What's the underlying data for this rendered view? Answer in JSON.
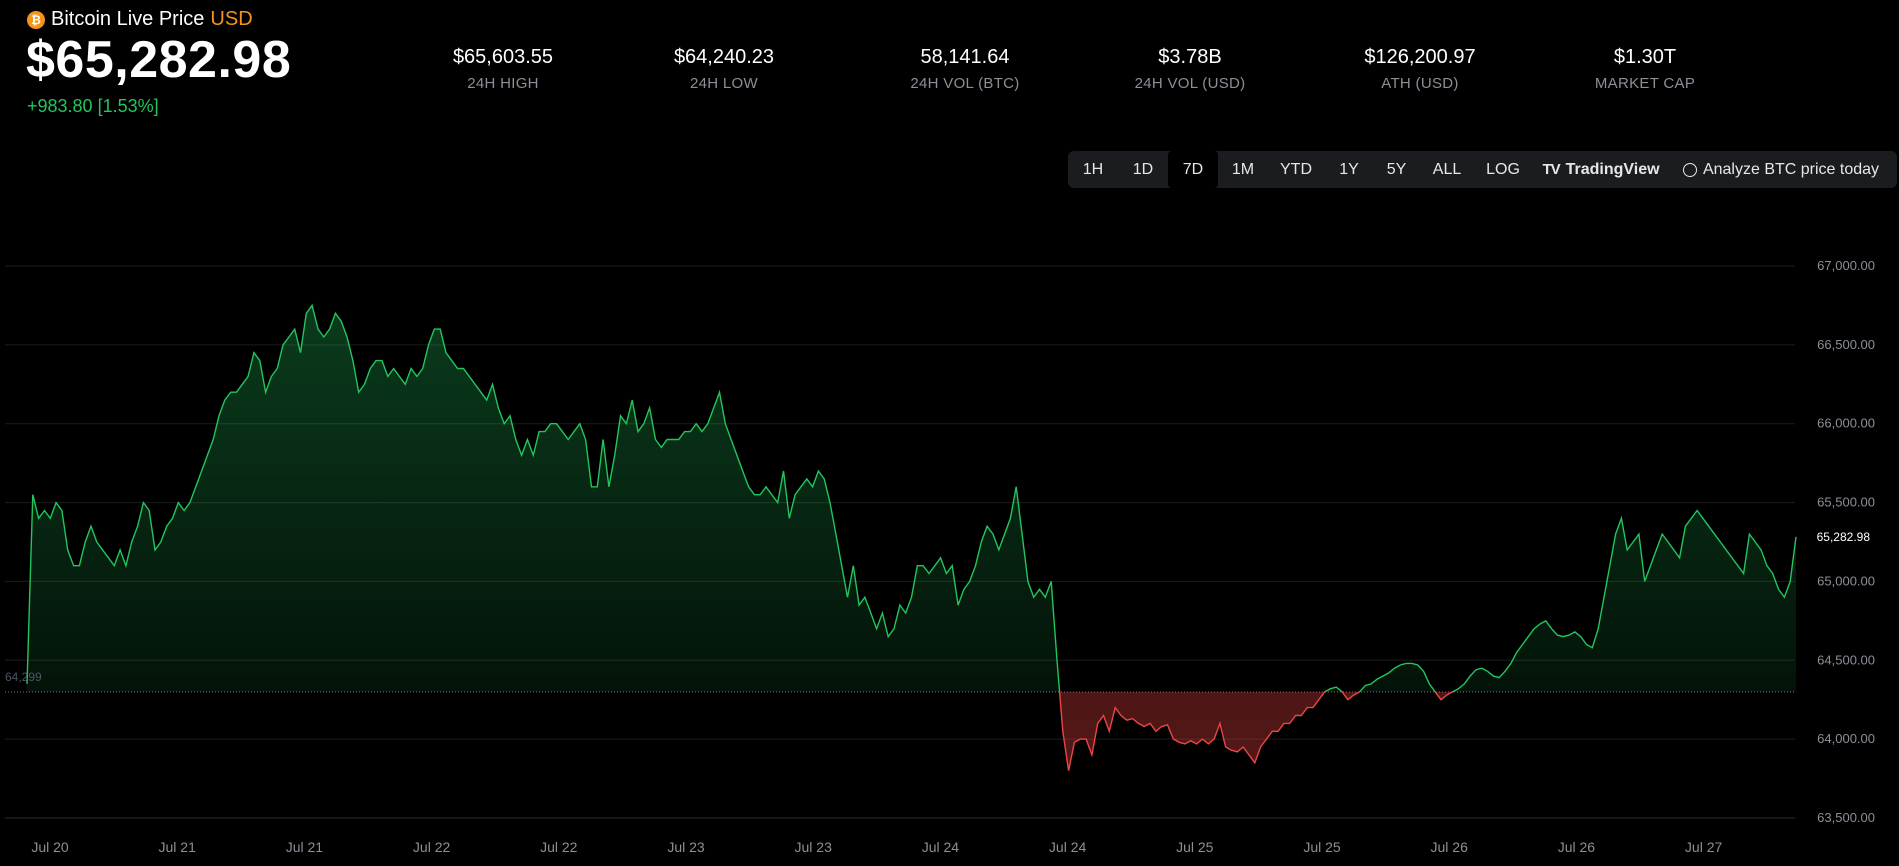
{
  "header": {
    "coin_icon": "bitcoin-icon",
    "title": "Bitcoin Live Price",
    "currency": "USD",
    "price": "$65,282.98",
    "change": "+983.80 [1.53%]"
  },
  "stats": [
    {
      "value": "$65,603.55",
      "label": "24H HIGH"
    },
    {
      "value": "$64,240.23",
      "label": "24H LOW"
    },
    {
      "value": "58,141.64",
      "label": "24H VOL (BTC)"
    },
    {
      "value": "$3.78B",
      "label": "24H VOL (USD)"
    },
    {
      "value": "$126,200.97",
      "label": "ATH (USD)"
    },
    {
      "value": "$1.30T",
      "label": "MARKET CAP"
    }
  ],
  "toolbar": {
    "ranges": [
      "1H",
      "1D",
      "7D",
      "1M",
      "YTD",
      "1Y",
      "5Y",
      "ALL"
    ],
    "active_range": "7D",
    "log_label": "LOG",
    "tradingview_label": "TradingView",
    "tradingview_icon": "tradingview-logo-icon",
    "analyze_label": "Analyze BTC price today",
    "analyze_icon": "openai-icon"
  },
  "colors": {
    "up": "#22c55e",
    "down": "#ef4444",
    "accent": "#f7931a",
    "muted": "#8a8f98"
  },
  "chart_data": {
    "type": "area",
    "baseline": 64299,
    "baseline_label": "64,299",
    "last_value": 65282.98,
    "last_label": "65,282.98",
    "ylim": [
      63500,
      67000
    ],
    "y_ticks": [
      67000,
      66500,
      66000,
      65500,
      65000,
      64500,
      64000,
      63500
    ],
    "y_tick_labels": [
      "67,000.00",
      "66,500.00",
      "66,000.00",
      "65,500.00",
      "65,000.00",
      "64,500.00",
      "64,000.00",
      "63,500.00"
    ],
    "x_tick_labels": [
      "Jul 20",
      "Jul 21",
      "Jul 21",
      "Jul 22",
      "Jul 22",
      "Jul 23",
      "Jul 23",
      "Jul 24",
      "Jul 24",
      "Jul 25",
      "Jul 25",
      "Jul 26",
      "Jul 26",
      "Jul 27"
    ],
    "grid": true,
    "series": [
      {
        "values": [
          64350,
          65550,
          65400,
          65450,
          65400,
          65500,
          65450,
          65200,
          65100,
          65100,
          65250,
          65350,
          65250,
          65200,
          65150,
          65100,
          65200,
          65100,
          65250,
          65350,
          65500,
          65450,
          65200,
          65250,
          65350,
          65400,
          65500,
          65450,
          65500,
          65600,
          65700,
          65800,
          65900,
          66050,
          66150,
          66200,
          66200,
          66250,
          66300,
          66450,
          66400,
          66200,
          66300,
          66350,
          66500,
          66550,
          66600,
          66450,
          66700,
          66750,
          66600,
          66550,
          66600,
          66700,
          66650,
          66550,
          66400,
          66200,
          66250,
          66350,
          66400,
          66400,
          66300,
          66350,
          66300,
          66250,
          66350,
          66300,
          66350,
          66500,
          66600,
          66600,
          66450,
          66400,
          66350,
          66350,
          66300,
          66250,
          66200,
          66150,
          66250,
          66100,
          66000,
          66050,
          65900,
          65800,
          65900,
          65800,
          65950,
          65950,
          66000,
          66000,
          65950,
          65900,
          65950,
          66000,
          65900,
          65600,
          65600,
          65900,
          65600,
          65800,
          66050,
          66000,
          66150,
          65950,
          66000,
          66100,
          65900,
          65850,
          65900,
          65900,
          65900,
          65950,
          65950,
          66000,
          65950,
          66000,
          66100,
          66200,
          66000,
          65900,
          65800,
          65700,
          65600,
          65550,
          65550,
          65600,
          65550,
          65500,
          65700,
          65400,
          65550,
          65600,
          65650,
          65600,
          65700,
          65650,
          65500,
          65300,
          65100,
          64900,
          65100,
          64850,
          64900,
          64800,
          64700,
          64800,
          64650,
          64700,
          64850,
          64800,
          64900,
          65100,
          65100,
          65050,
          65100,
          65150,
          65050,
          65100,
          64850,
          64950,
          65000,
          65100,
          65250,
          65350,
          65300,
          65200,
          65300,
          65400,
          65600,
          65300,
          65000,
          64900,
          64950,
          64900,
          65000,
          64500,
          64050,
          63800,
          63980,
          64000,
          64000,
          63900,
          64100,
          64150,
          64050,
          64200,
          64150,
          64120,
          64130,
          64100,
          64080,
          64100,
          64050,
          64080,
          64090,
          64000,
          63980,
          63970,
          63990,
          63970,
          64000,
          63970,
          64000,
          64100,
          63950,
          63930,
          63920,
          63950,
          63900,
          63850,
          63950,
          64000,
          64050,
          64050,
          64100,
          64100,
          64150,
          64150,
          64200,
          64200,
          64250,
          64300,
          64320,
          64330,
          64300,
          64250,
          64280,
          64300,
          64340,
          64350,
          64380,
          64400,
          64420,
          64450,
          64470,
          64480,
          64480,
          64470,
          64430,
          64350,
          64300,
          64250,
          64280,
          64300,
          64320,
          64350,
          64400,
          64440,
          64450,
          64430,
          64400,
          64390,
          64430,
          64480,
          64550,
          64600,
          64650,
          64700,
          64730,
          64750,
          64700,
          64660,
          64650,
          64660,
          64680,
          64650,
          64600,
          64580,
          64700,
          64900,
          65100,
          65300,
          65400,
          65200,
          65250,
          65300,
          65000,
          65100,
          65200,
          65300,
          65250,
          65200,
          65150,
          65350,
          65400,
          65450,
          65400,
          65350,
          65300,
          65250,
          65200,
          65150,
          65100,
          65050,
          65300,
          65250,
          65200,
          65100,
          65050,
          64950,
          64900,
          65000,
          65283
        ]
      }
    ]
  }
}
